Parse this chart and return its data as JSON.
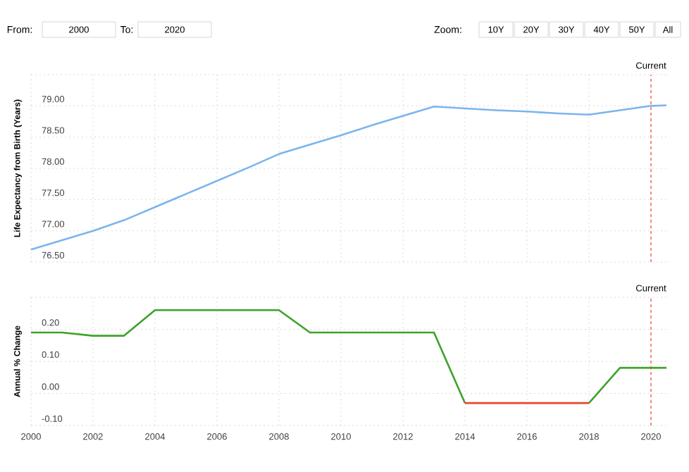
{
  "chart_data": [
    {
      "type": "line",
      "ylabel": "Life Expectancy from Birth (Years)",
      "annotations": [
        "From:",
        "2000",
        "To:",
        "2020",
        "Zoom:",
        "10Y",
        "20Y",
        "30Y",
        "40Y",
        "50Y",
        "All"
      ],
      "x": [
        2000,
        2001,
        2002,
        2003,
        2004,
        2005,
        2006,
        2007,
        2008,
        2009,
        2010,
        2011,
        2012,
        2013,
        2014,
        2015,
        2016,
        2017,
        2018,
        2019,
        2020,
        2020.5
      ],
      "series": [
        {
          "color": "#7cb5ec",
          "values": [
            76.7,
            76.85,
            77.0,
            77.17,
            77.38,
            77.59,
            77.8,
            78.01,
            78.23,
            78.38,
            78.53,
            78.69,
            78.84,
            78.99,
            78.96,
            78.93,
            78.91,
            78.88,
            78.86,
            78.93,
            79.0,
            79.01
          ]
        }
      ],
      "xlim": [
        2000,
        2020.5
      ],
      "xticks": [
        2000,
        2002,
        2004,
        2006,
        2008,
        2010,
        2012,
        2014,
        2016,
        2018,
        2020
      ],
      "ylim": [
        76.5,
        79.5
      ],
      "yticks": [
        {
          "value": 76.5,
          "label": "76.50"
        },
        {
          "value": 77,
          "label": "77.00"
        },
        {
          "value": 77.5,
          "label": "77.50"
        },
        {
          "value": 78,
          "label": "78.00"
        },
        {
          "value": 78.5,
          "label": "78.50"
        },
        {
          "value": 79,
          "label": "79.00"
        },
        {
          "value": 79.5,
          "label": null
        }
      ],
      "ref_lines": [
        {
          "axis": "x",
          "value": 2020,
          "label": "Current",
          "color": "#e8452c",
          "line_style": "dashed"
        }
      ],
      "grid": true,
      "tick_labels": "y"
    },
    {
      "type": "line",
      "ylabel": "Annual % Change",
      "x": [
        2000,
        2001,
        2002,
        2003,
        2004,
        2005,
        2006,
        2007,
        2008,
        2009,
        2010,
        2011,
        2012,
        2013,
        2014,
        2015,
        2016,
        2017,
        2018,
        2019,
        2020,
        2020.5
      ],
      "series": [
        {
          "color": "#3ea22a",
          "values": [
            0.19,
            0.19,
            0.18,
            0.18,
            0.26,
            0.26,
            0.26,
            0.26,
            0.26,
            0.19,
            0.19,
            0.19,
            0.19,
            0.19,
            -0.03,
            null,
            null,
            null,
            -0.03,
            0.08,
            0.08,
            0.08
          ]
        },
        {
          "color": "#e8452c",
          "values": [
            null,
            null,
            null,
            null,
            null,
            null,
            null,
            null,
            null,
            null,
            null,
            null,
            null,
            null,
            -0.03,
            -0.03,
            -0.03,
            -0.03,
            -0.03,
            null,
            null,
            null
          ]
        }
      ],
      "xlim": [
        2000,
        2020.5
      ],
      "xticks": [
        2000,
        2002,
        2004,
        2006,
        2008,
        2010,
        2012,
        2014,
        2016,
        2018,
        2020
      ],
      "ylim": [
        -0.1,
        0.3
      ],
      "yticks": [
        {
          "value": -0.1,
          "label": "-0.10"
        },
        {
          "value": 0,
          "label": "0.00"
        },
        {
          "value": 0.1,
          "label": "0.10"
        },
        {
          "value": 0.2,
          "label": "0.20"
        },
        {
          "value": 0.3,
          "label": null
        }
      ],
      "ref_lines": [
        {
          "axis": "x",
          "value": 2020,
          "label": "Current",
          "color": "#e8452c",
          "line_style": "dashed"
        }
      ],
      "grid": true
    }
  ]
}
